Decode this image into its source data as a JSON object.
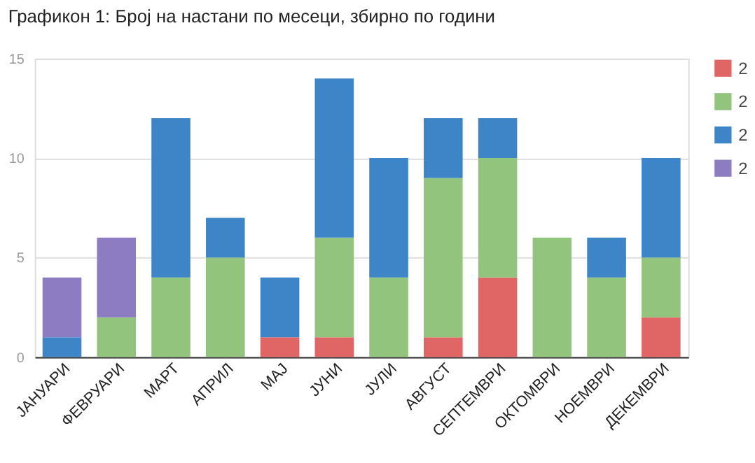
{
  "chart_data": {
    "type": "bar",
    "title": "Графикон 1: Број на настани по месеци, збирно по години",
    "stacked": true,
    "categories": [
      "ЈАНУАРИ",
      "ФЕВРУАРИ",
      "МАРТ",
      "АПРИЛ",
      "МАЈ",
      "ЈУНИ",
      "ЈУЛИ",
      "АВГУСТ",
      "СЕПТЕМВРИ",
      "ОКТОМВРИ",
      "НОЕМВРИ",
      "ДЕКЕМВРИ"
    ],
    "series": [
      {
        "name": "2",
        "color": "#e06666",
        "values": [
          0,
          0,
          0,
          0,
          1,
          1,
          0,
          1,
          4,
          0,
          0,
          2
        ]
      },
      {
        "name": "2",
        "color": "#93c47d",
        "values": [
          0,
          2,
          4,
          5,
          0,
          5,
          4,
          8,
          6,
          6,
          4,
          3
        ]
      },
      {
        "name": "2",
        "color": "#3d85c6",
        "values": [
          1,
          0,
          8,
          2,
          3,
          8,
          6,
          3,
          2,
          0,
          2,
          5
        ]
      },
      {
        "name": "2",
        "color": "#8e7cc3",
        "values": [
          3,
          4,
          0,
          0,
          0,
          0,
          0,
          0,
          0,
          0,
          0,
          0
        ]
      }
    ],
    "ylim": [
      0,
      15
    ],
    "yticks": [
      0,
      5,
      10,
      15
    ],
    "grid": "y",
    "legend": "top right"
  }
}
